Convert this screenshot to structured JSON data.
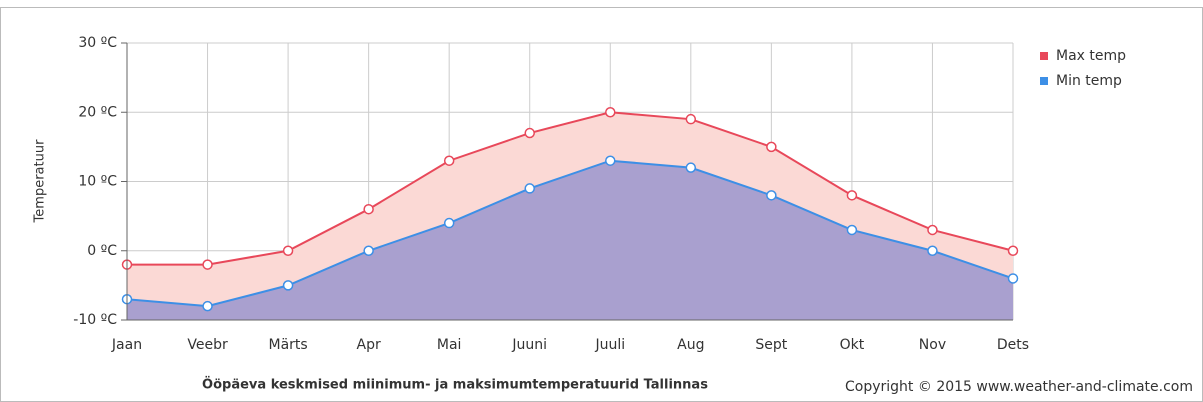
{
  "chart_data": {
    "type": "area",
    "y_label": "Temperatuur",
    "title": "Ööpäeva keskmised miinimum- ja maksimumtemperatuurid Tallinnas",
    "copyright": "Copyright © 2015 www.weather-and-climate.com",
    "categories": [
      "Jaan",
      "Veebr",
      "Märts",
      "Apr",
      "Mai",
      "Juuni",
      "Juuli",
      "Aug",
      "Sept",
      "Okt",
      "Nov",
      "Dets"
    ],
    "series": [
      {
        "name": "Max temp",
        "color": "#e8485a",
        "fill": "#fbd9d5",
        "values": [
          -2,
          -2,
          0,
          6,
          13,
          17,
          20,
          19,
          15,
          8,
          3,
          0
        ]
      },
      {
        "name": "Min temp",
        "color": "#3d8fe6",
        "fill": "#a9a0cf",
        "values": [
          -7,
          -8,
          -5,
          0,
          4,
          9,
          13,
          12,
          8,
          3,
          0,
          -4
        ]
      }
    ],
    "ylim": [
      -10,
      30
    ],
    "yticks": [
      {
        "value": -10,
        "label": "-10 ºC"
      },
      {
        "value": 0,
        "label": "0 ºC"
      },
      {
        "value": 10,
        "label": "10 ºC"
      },
      {
        "value": 20,
        "label": "20 ºC"
      },
      {
        "value": 30,
        "label": "30 ºC"
      }
    ],
    "grid": true,
    "legend": "top-right"
  }
}
